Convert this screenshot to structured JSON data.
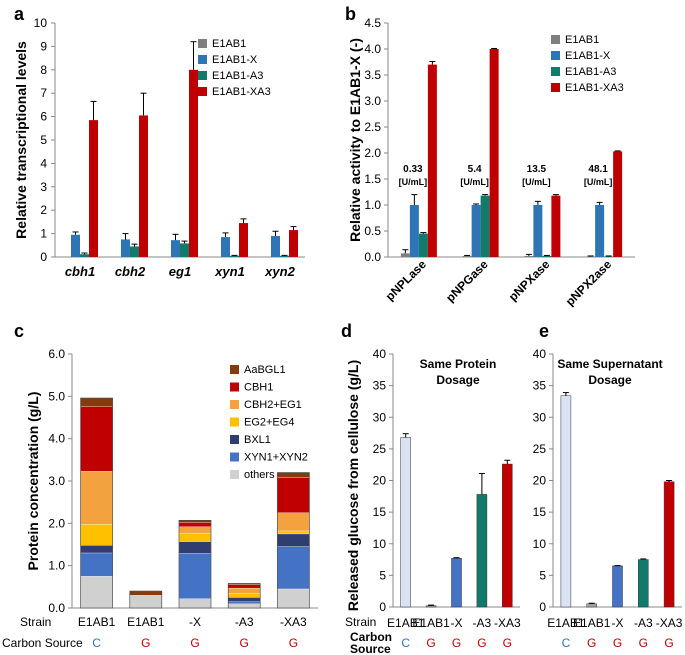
{
  "panels": {
    "a": {
      "letter": "a",
      "ylabel": "Relative transcriptional levels",
      "ylim": [
        0,
        10
      ],
      "yticks": [
        0,
        1,
        2,
        3,
        4,
        5,
        6,
        7,
        8,
        9,
        10
      ],
      "categories": [
        "cbh1",
        "cbh2",
        "eg1",
        "xyn1",
        "xyn2"
      ],
      "series": [
        {
          "name": "E1AB1",
          "values": [
            0,
            0,
            0,
            0,
            0
          ],
          "errors": [
            0,
            0,
            0,
            0,
            0
          ]
        },
        {
          "name": "E1AB1-X",
          "values": [
            0.95,
            0.75,
            0.72,
            0.85,
            0.9
          ],
          "errors": [
            0.12,
            0.25,
            0.25,
            0.18,
            0.2
          ]
        },
        {
          "name": "E1AB1-A3",
          "values": [
            0.12,
            0.45,
            0.58,
            0.05,
            0.05
          ],
          "errors": [
            0.05,
            0.1,
            0.1,
            0.02,
            0.02
          ]
        },
        {
          "name": "E1AB1-XA3",
          "values": [
            5.85,
            6.05,
            8.0,
            1.45,
            1.15
          ],
          "errors": [
            0.8,
            0.95,
            1.2,
            0.18,
            0.15
          ]
        }
      ]
    },
    "b": {
      "letter": "b",
      "ylabel": "Relative activity to E1AB1-X (-)",
      "ylim": [
        0,
        4.5
      ],
      "yticks": [
        "0.0",
        "0.5",
        "1.0",
        "1.5",
        "2.0",
        "2.5",
        "3.0",
        "3.5",
        "4.0",
        "4.5"
      ],
      "categories": [
        "pNPLase",
        "pNPGase",
        "pNPXase",
        "pNPX2ase"
      ],
      "annotations": [
        {
          "value": "0.33",
          "unit": "[U/mL]"
        },
        {
          "value": "5.4",
          "unit": "[U/mL]"
        },
        {
          "value": "13.5",
          "unit": "[U/mL]"
        },
        {
          "value": "48.1",
          "unit": "[U/mL]"
        }
      ],
      "series": [
        {
          "name": "E1AB1",
          "values": [
            0.07,
            0.02,
            0.02,
            0.01
          ],
          "errors": [
            0.07,
            0.01,
            0.03,
            0.01
          ]
        },
        {
          "name": "E1AB1-X",
          "values": [
            1.0,
            1.0,
            1.0,
            1.0
          ],
          "errors": [
            0.2,
            0.02,
            0.07,
            0.05
          ]
        },
        {
          "name": "E1AB1-A3",
          "values": [
            0.45,
            1.18,
            0.02,
            0.01
          ],
          "errors": [
            0.02,
            0.02,
            0.01,
            0.01
          ]
        },
        {
          "name": "E1AB1-XA3",
          "values": [
            3.7,
            4.0,
            1.18,
            2.03
          ],
          "errors": [
            0.06,
            0.01,
            0.02,
            0.01
          ]
        }
      ]
    },
    "c": {
      "letter": "c",
      "ylabel": "Protein concentration (g/L)",
      "ylim": [
        0,
        6
      ],
      "yticks": [
        "0.0",
        "1.0",
        "2.0",
        "3.0",
        "4.0",
        "5.0",
        "6.0"
      ],
      "strains": [
        "E1AB1",
        "E1AB1",
        "-X",
        "-A3",
        "-XA3"
      ],
      "carbon": [
        "C",
        "G",
        "G",
        "G",
        "G"
      ],
      "components": [
        {
          "name": "others",
          "values": [
            0.75,
            0.3,
            0.22,
            0.1,
            0.45
          ]
        },
        {
          "name": "XYN1+XYN2",
          "values": [
            0.55,
            0.0,
            1.07,
            0.05,
            1.0
          ]
        },
        {
          "name": "BXL1",
          "values": [
            0.18,
            0.0,
            0.28,
            0.1,
            0.3
          ]
        },
        {
          "name": "EG2+EG4",
          "values": [
            0.5,
            0.0,
            0.2,
            0.1,
            0.07
          ]
        },
        {
          "name": "CBH2+EG1",
          "values": [
            1.25,
            0.0,
            0.15,
            0.12,
            0.43
          ]
        },
        {
          "name": "CBH1",
          "values": [
            1.53,
            0.0,
            0.1,
            0.08,
            0.83
          ]
        },
        {
          "name": "AaBGL1",
          "values": [
            0.2,
            0.1,
            0.05,
            0.03,
            0.12
          ]
        }
      ]
    },
    "d": {
      "letter": "d",
      "title": "Same Protein Dosage",
      "ylabel": "Released glucose from cellulose (g/L)",
      "ylim": [
        0,
        40
      ],
      "yticks": [
        0,
        5,
        10,
        15,
        20,
        25,
        30,
        35,
        40
      ],
      "strains": [
        "E1AB1",
        "E1AB1",
        "-X",
        "-A3",
        "-XA3"
      ],
      "carbon": [
        "C",
        "G",
        "G",
        "G",
        "G"
      ],
      "values": [
        26.8,
        0.2,
        7.7,
        17.8,
        22.6
      ],
      "errors": [
        0.6,
        0.1,
        0.1,
        3.3,
        0.6
      ]
    },
    "e": {
      "letter": "e",
      "title": "Same  Supernatant Dosage",
      "ylim": [
        0,
        40
      ],
      "yticks": [
        0,
        5,
        10,
        15,
        20,
        25,
        30,
        35,
        40
      ],
      "strains": [
        "E1AB1",
        "E1AB1",
        "-X",
        "-A3",
        "-XA3"
      ],
      "carbon": [
        "C",
        "G",
        "G",
        "G",
        "G"
      ],
      "values": [
        33.4,
        0.5,
        6.5,
        7.5,
        19.8
      ],
      "errors": [
        0.5,
        0.1,
        0.05,
        0.1,
        0.2
      ]
    }
  },
  "row_labels": {
    "strain": "Strain",
    "carbon_source": "Carbon Source",
    "carbon": "Carbon",
    "source": "Source"
  },
  "colors": {
    "E1AB1": "#7f7f7f",
    "E1AB1-X": "#2e75b6",
    "E1AB1-A3": "#127a6b",
    "E1AB1-XA3": "#c00000",
    "AaBGL1": "#843c0c",
    "CBH1": "#c00000",
    "CBH2+EG1": "#f4a13f",
    "EG2+EG4": "#ffc000",
    "BXL1": "#2f3d6f",
    "XYN1+XYN2": "#4472c4",
    "others": "#d0d0d0",
    "strain_bars": [
      "#dae3f3",
      "#a5a5a5",
      "#4472c4",
      "#127a6b",
      "#c00000"
    ],
    "carbon_C": "#2e75b6",
    "carbon_G": "#c00000"
  }
}
